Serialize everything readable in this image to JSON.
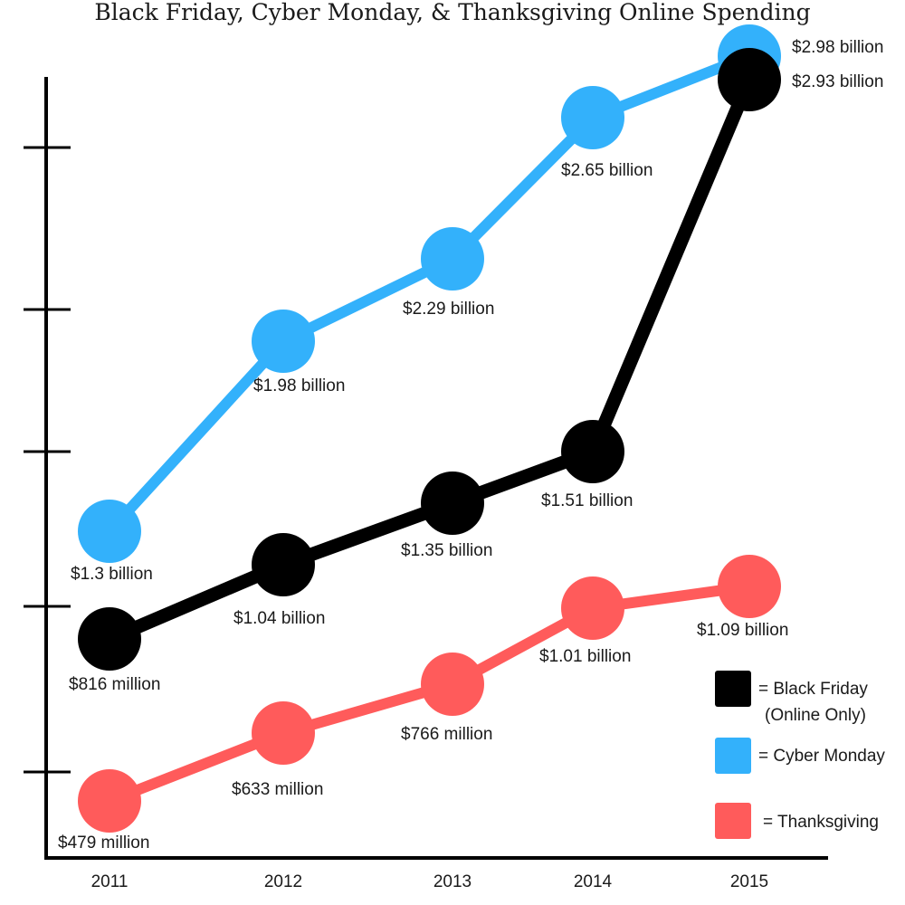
{
  "chart_data": {
    "type": "line",
    "title": "Black Friday, Cyber Monday, & Thanksgiving Online Spending",
    "xlabel": "",
    "ylabel": "",
    "categories": [
      "2011",
      "2012",
      "2013",
      "2014",
      "2015"
    ],
    "grid": false,
    "legend_position": "bottom-right",
    "series": [
      {
        "key": "cyber",
        "name": "= Cyber Monday",
        "color": "#33b1fb",
        "values": [
          1.3,
          1.98,
          2.29,
          2.65,
          2.98
        ],
        "labels": [
          "$1.3 billion",
          "$1.98 billion",
          "$2.29 billion",
          "$2.65 billion",
          "$2.98 billion"
        ]
      },
      {
        "key": "black",
        "name": "= Black Friday",
        "name_line2": "(Online Only)",
        "color": "#000000",
        "values": [
          0.816,
          1.04,
          1.35,
          1.51,
          2.93
        ],
        "labels": [
          "$816 million",
          "$1.04 billion",
          "$1.35 billion",
          "$1.51 billion",
          "$2.93 billion"
        ]
      },
      {
        "key": "thanks",
        "name": "= Thanksgiving",
        "color": "#ff5b5b",
        "values": [
          0.479,
          0.633,
          0.766,
          1.01,
          1.09
        ],
        "labels": [
          "$479 million",
          "$633 million",
          "$766 million",
          "$1.01 billion",
          "$1.09 billion"
        ]
      }
    ]
  }
}
